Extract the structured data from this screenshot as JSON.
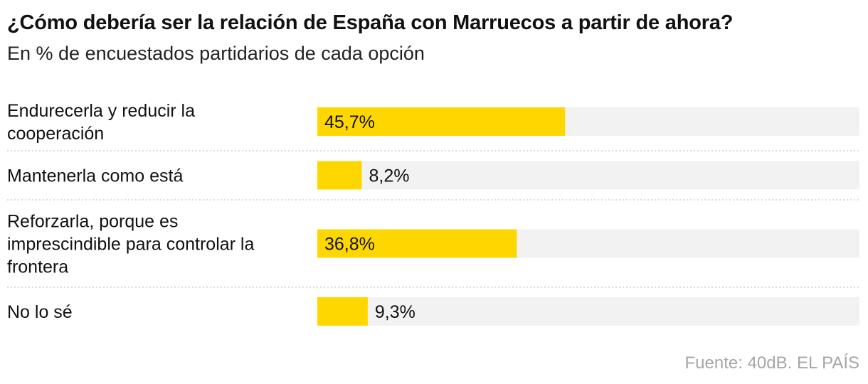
{
  "title": "¿Cómo debería ser la relación de España con Marruecos a partir de ahora?",
  "subtitle": "En % de encuestados partidarios de cada opción",
  "source": "Fuente: 40dB. EL PAÍS",
  "colors": {
    "bar": "#FFD700",
    "track": "#F2F2F2",
    "divider": "#c8c8c8"
  },
  "chart_data": {
    "type": "bar",
    "orientation": "horizontal",
    "categories": [
      "Endurecerla y reducir la cooperación",
      "Mantenerla como está",
      "Reforzarla, porque es imprescindible para controlar la frontera",
      "No lo sé"
    ],
    "category_lines": [
      [
        "Endurecerla y reducir la",
        "cooperación"
      ],
      [
        "Mantenerla como está"
      ],
      [
        "Reforzarla, porque es",
        "imprescindible para controlar la",
        "frontera"
      ],
      [
        "No lo sé"
      ]
    ],
    "values": [
      45.7,
      8.2,
      36.8,
      9.3
    ],
    "value_labels": [
      "45,7%",
      "8,2%",
      "36,8%",
      "9,3%"
    ],
    "xlim": [
      0,
      100
    ],
    "grid": false,
    "legend": "none"
  }
}
